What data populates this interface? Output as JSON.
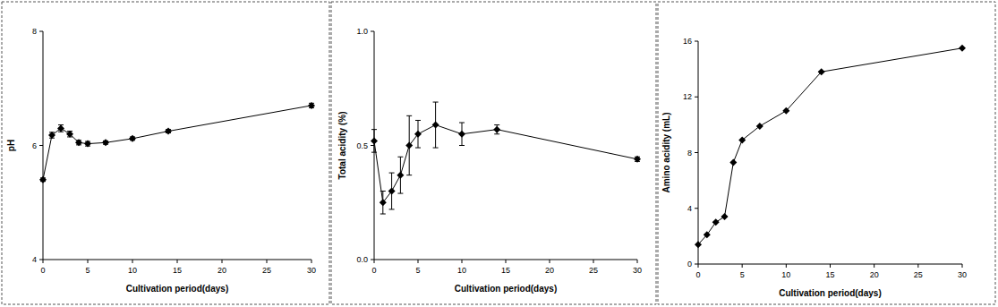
{
  "chart_data": [
    {
      "type": "line",
      "x_label": "Cultivation period(days)",
      "y_label": "pH",
      "x": [
        0,
        1,
        2,
        3,
        4,
        5,
        7,
        10,
        14,
        30
      ],
      "values": [
        5.4,
        6.18,
        6.3,
        6.2,
        6.05,
        6.03,
        6.05,
        6.12,
        6.25,
        6.7
      ],
      "errors": [
        0.03,
        0.05,
        0.06,
        0.05,
        0.04,
        0.04,
        0.03,
        0.03,
        0.03,
        0.04
      ],
      "color": "#000000",
      "marker": "diamond",
      "xlim": [
        0,
        30
      ],
      "xticks": [
        0,
        5,
        10,
        15,
        20,
        25,
        30
      ],
      "ylim": [
        4,
        8
      ],
      "yticks": [
        4,
        6,
        8
      ]
    },
    {
      "type": "line",
      "x_label": "Cultivation period(days)",
      "y_label": "Total acidity (%)",
      "x": [
        0,
        1,
        2,
        3,
        4,
        5,
        7,
        10,
        14,
        30
      ],
      "values": [
        0.52,
        0.25,
        0.3,
        0.37,
        0.5,
        0.55,
        0.59,
        0.55,
        0.57,
        0.44
      ],
      "errors": [
        0.05,
        0.05,
        0.08,
        0.08,
        0.13,
        0.06,
        0.1,
        0.05,
        0.02,
        0.01
      ],
      "color": "#000000",
      "marker": "diamond",
      "xlim": [
        0,
        30
      ],
      "xticks": [
        0,
        5,
        10,
        15,
        20,
        25,
        30
      ],
      "ylim": [
        0,
        1
      ],
      "yticks": [
        {
          "value": 0,
          "label": "0.0"
        },
        {
          "value": 0.5,
          "label": "0.5"
        },
        {
          "value": 1,
          "label": "1.0"
        }
      ]
    },
    {
      "type": "line",
      "x_label": "Cultivation period(days)",
      "y_label": "Amino acidity (mL)",
      "x": [
        0,
        1,
        2,
        3,
        4,
        5,
        7,
        10,
        14,
        30
      ],
      "values": [
        1.4,
        2.1,
        3.0,
        3.4,
        7.3,
        8.9,
        9.9,
        11.0,
        13.8,
        15.5
      ],
      "errors": [
        0,
        0,
        0,
        0,
        0,
        0,
        0,
        0,
        0,
        0
      ],
      "color": "#000000",
      "marker": "diamond",
      "xlim": [
        0,
        30
      ],
      "xticks": [
        0,
        5,
        10,
        15,
        20,
        25,
        30
      ],
      "ylim": [
        0,
        16
      ],
      "yticks": [
        0,
        4,
        8,
        12,
        16
      ]
    }
  ]
}
